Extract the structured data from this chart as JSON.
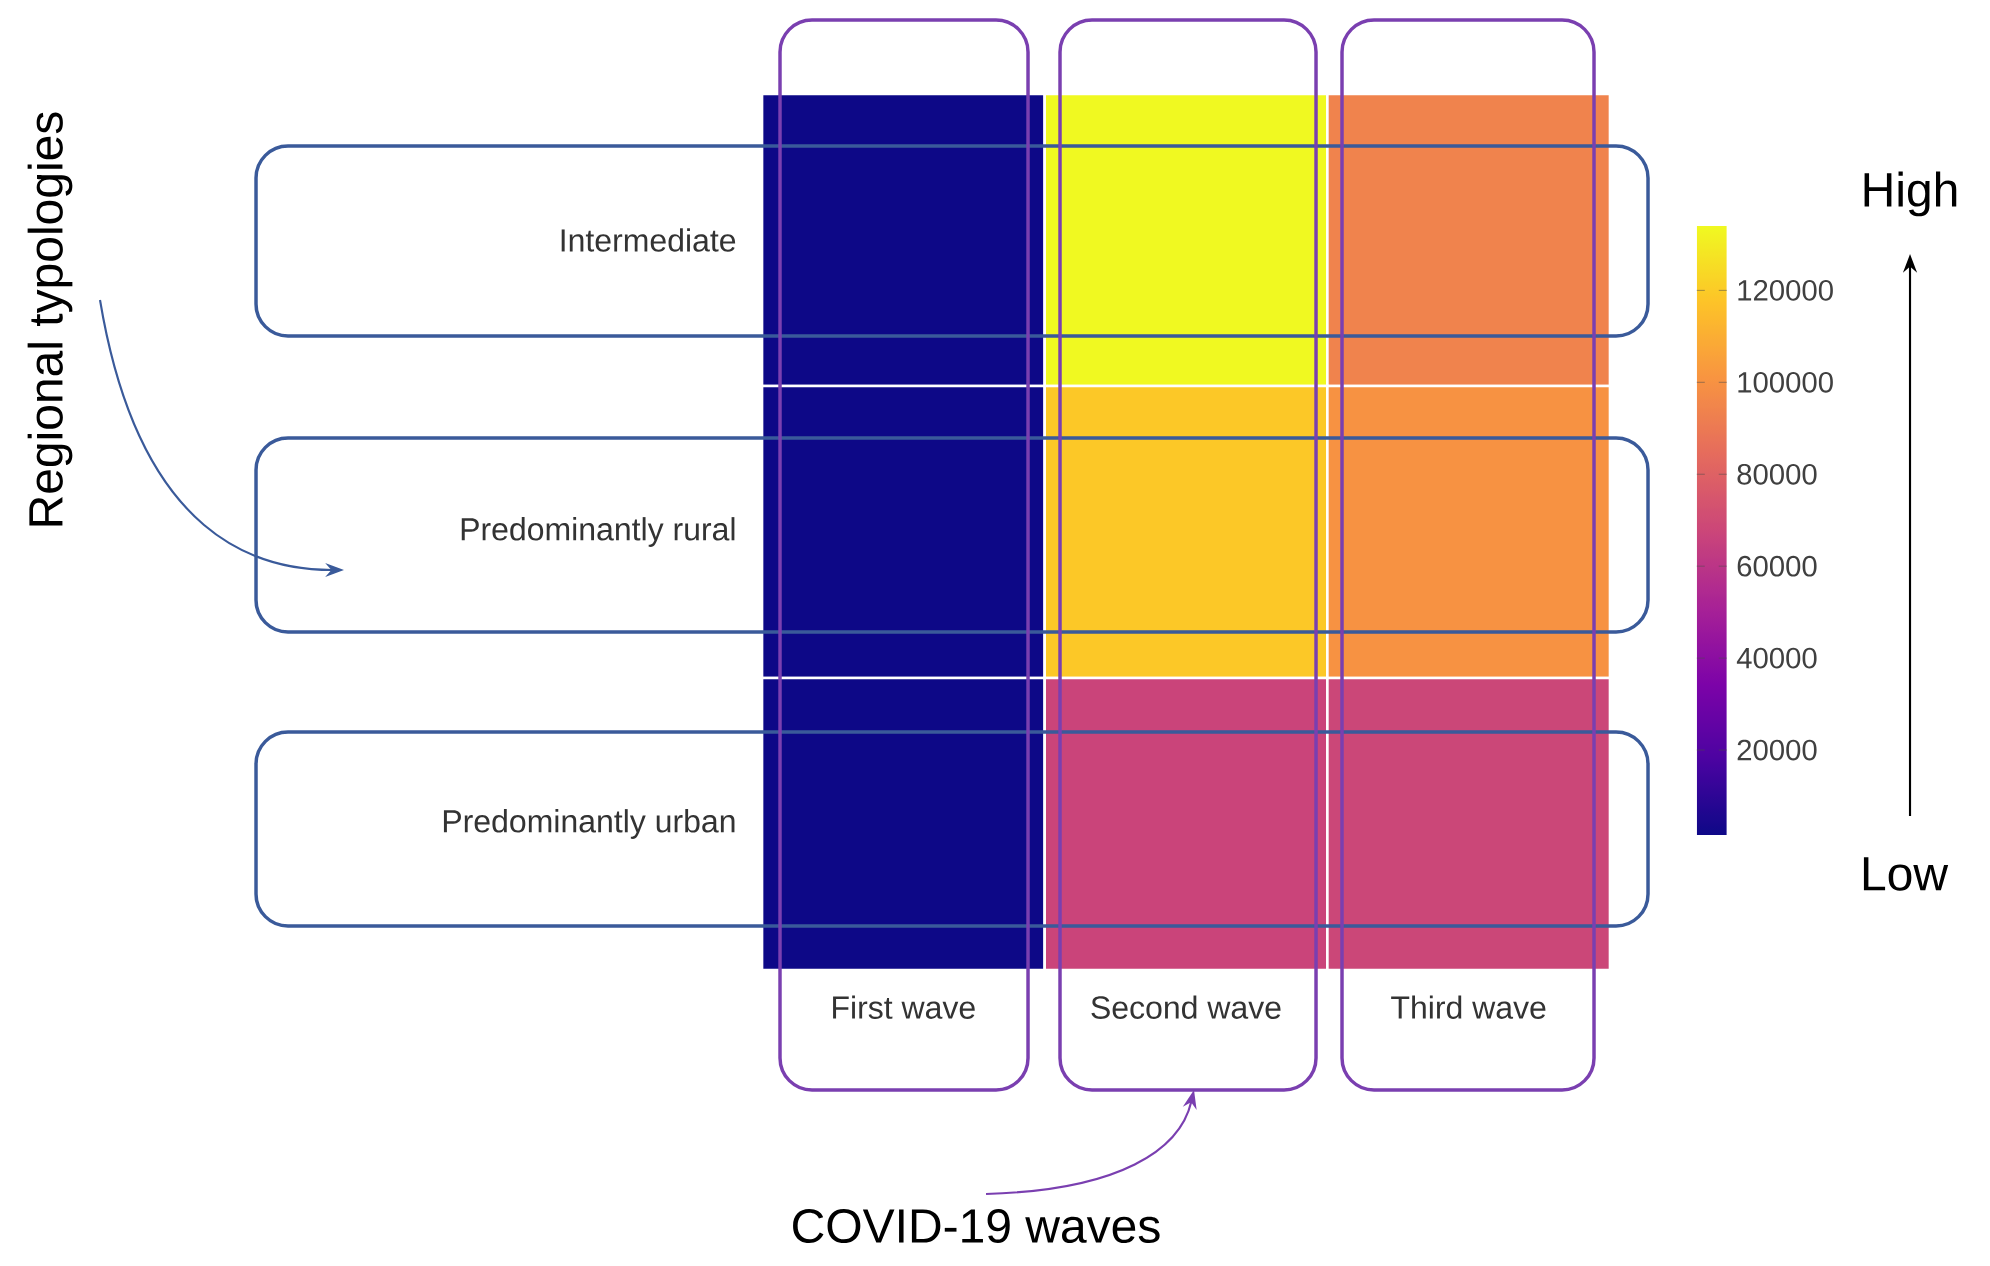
{
  "chart_data": {
    "type": "heatmap",
    "categories": [
      "First wave",
      "Second wave",
      "Third wave"
    ],
    "y_categories": [
      "Intermediate",
      "Predominantly rural",
      "Predominantly urban"
    ],
    "cells": [
      [
        1300,
        134000,
        94000
      ],
      [
        1300,
        119000,
        100000
      ],
      [
        1300,
        67000,
        68000
      ]
    ],
    "clim": [
      1300,
      134000
    ],
    "cticks": [
      20000,
      40000,
      60000,
      80000,
      100000,
      120000
    ],
    "annotations": [
      "Regional typologies",
      "COVID-19 waves",
      "High",
      "Low"
    ]
  }
}
